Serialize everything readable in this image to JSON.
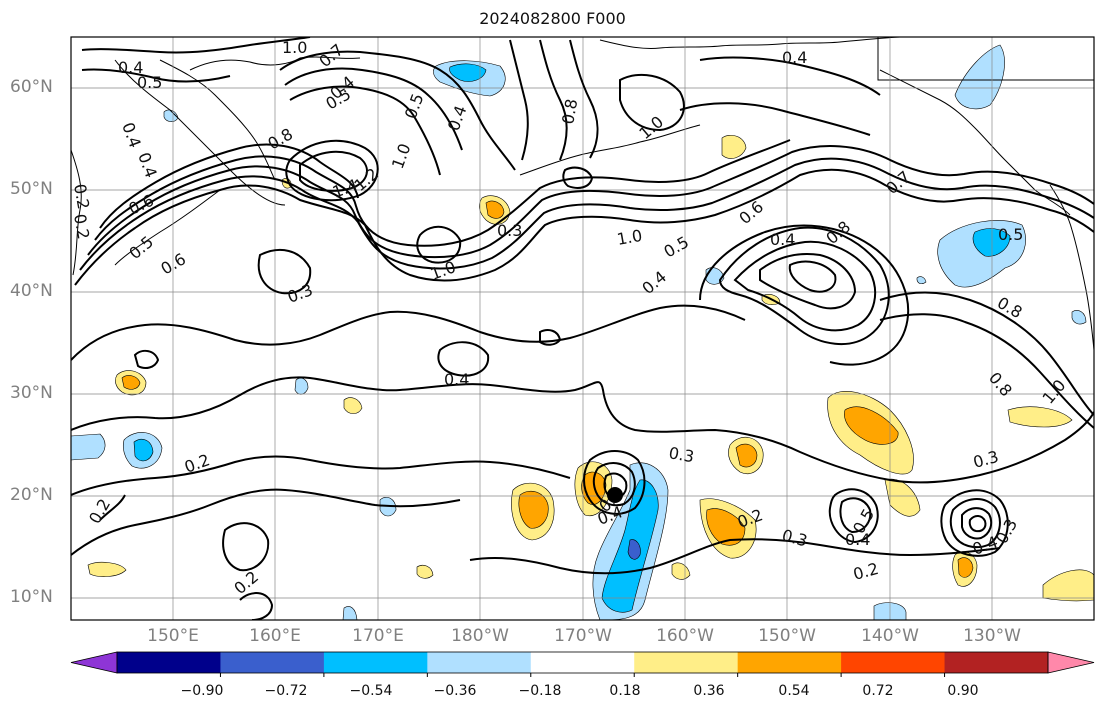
{
  "title": "2024082800 F000",
  "lat_labels": [
    "60°N",
    "50°N",
    "40°N",
    "30°N",
    "20°N",
    "10°N"
  ],
  "lon_labels": [
    "150°E",
    "160°E",
    "170°E",
    "180°W",
    "170°W",
    "160°W",
    "150°W",
    "140°W",
    "130°W"
  ],
  "colorbar": {
    "colors": [
      "#8e35d6",
      "#00008b",
      "#3a5fcd",
      "#00bfff",
      "#b0e0ff",
      "#ffffff",
      "#ffee88",
      "#ffa500",
      "#ff4500",
      "#b22222",
      "#ff88aa"
    ],
    "ticks": [
      "−0.90",
      "−0.72",
      "−0.54",
      "−0.36",
      "−0.18",
      "0.18",
      "0.36",
      "0.54",
      "0.72",
      "0.90"
    ],
    "extend": "both"
  },
  "contour_labels": [
    "1.0",
    "0.7",
    "0.4",
    "0.5",
    "0.4",
    "0.5",
    "0.4",
    "0.8",
    "0.4",
    "0.5",
    "0.6",
    "0.4",
    "0.2",
    "0.2",
    "0.5",
    "1.4",
    "1.2",
    "1.0",
    "0.6",
    "0.3",
    "1.0",
    "0.4",
    "0.8",
    "1.0",
    "1.0",
    "0.5",
    "0.4",
    "0.6",
    "0.7",
    "0.8",
    "0.4",
    "0.5",
    "0.8",
    "0.3",
    "0.4",
    "0.8",
    "1.0",
    "0.2",
    "0.3",
    "0.3",
    "0.3",
    "0.4",
    "0.2",
    "0.3",
    "0.4",
    "0.5",
    "0.4",
    "0.3",
    "0.2",
    "0.2",
    "0.2"
  ],
  "storm_marker": "tropical-cyclone-marker"
}
